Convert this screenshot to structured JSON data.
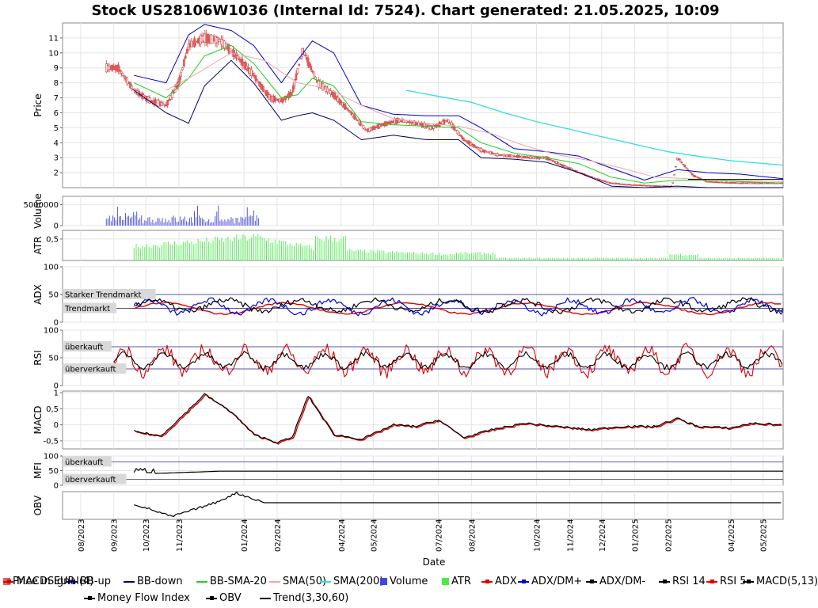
{
  "title": "Stock US28106W1036 (Internal Id: 7524). Chart generated: 21.05.2025, 10:09",
  "x_axis_label": "Date",
  "date_ticks": [
    "08/2023",
    "09/2023",
    "10/2023",
    "11/2023",
    "01/2024",
    "02/2024",
    "04/2024",
    "05/2024",
    "07/2024",
    "08/2024",
    "10/2024",
    "11/2024",
    "12/2024",
    "01/2025",
    "02/2025",
    "04/2025",
    "05/2025"
  ],
  "panels": [
    {
      "id": "price",
      "ylabel": "Price",
      "ticks": [
        "2",
        "3",
        "4",
        "5",
        "6",
        "7",
        "8",
        "9",
        "10",
        "11"
      ]
    },
    {
      "id": "volume",
      "ylabel": "Volume",
      "ticks": [
        "0",
        "5000000"
      ]
    },
    {
      "id": "atr",
      "ylabel": "ATR",
      "ticks": [
        "0,5"
      ]
    },
    {
      "id": "adx",
      "ylabel": "ADX",
      "ticks": [
        "0",
        "50",
        "100"
      ],
      "ref_labels": [
        "Starker Trendmarkt",
        "Trendmarkt"
      ]
    },
    {
      "id": "rsi",
      "ylabel": "RSI",
      "ticks": [
        "0",
        "50",
        "100"
      ],
      "ref_labels": [
        "überkauft",
        "überverkauft"
      ]
    },
    {
      "id": "macd",
      "ylabel": "MACD",
      "ticks": [
        "1",
        "0,5",
        "0",
        "-0,5"
      ]
    },
    {
      "id": "mfi",
      "ylabel": "MFI",
      "ticks": [
        "0",
        "50",
        "100"
      ],
      "ref_labels": [
        "überkauft",
        "überverkauft"
      ]
    },
    {
      "id": "obv",
      "ylabel": "OBV",
      "ticks": []
    }
  ],
  "legend": [
    {
      "label": "Price in EUR",
      "color": "#e86060",
      "kind": "box"
    },
    {
      "label": "BB-up",
      "color": "#0000cc",
      "kind": "line"
    },
    {
      "label": "BB-down",
      "color": "#000066",
      "kind": "line"
    },
    {
      "label": "BB-SMA-20",
      "color": "#22cc22",
      "kind": "line"
    },
    {
      "label": "SMA(50)",
      "color": "#f0a8a8",
      "kind": "line"
    },
    {
      "label": "SMA(200)",
      "color": "#33dddd",
      "kind": "line"
    },
    {
      "label": "Volume",
      "color": "#4444ee",
      "kind": "box"
    },
    {
      "label": "ATR",
      "color": "#44ee44",
      "kind": "box"
    },
    {
      "label": "ADX",
      "color": "#dd0000",
      "kind": "marker"
    },
    {
      "label": "ADX/DM+",
      "color": "#0000dd",
      "kind": "marker"
    },
    {
      "label": "ADX/DM-",
      "color": "#000000",
      "kind": "marker"
    },
    {
      "label": "RSI 14",
      "color": "#000000",
      "kind": "marker"
    },
    {
      "label": "RSI 5",
      "color": "#dd0000",
      "kind": "marker"
    },
    {
      "label": "MACD(5,13)",
      "color": "#000000",
      "kind": "marker"
    },
    {
      "label": "MACDSignal(4)",
      "color": "#dd0000",
      "kind": "marker"
    },
    {
      "label": "Money Flow Index",
      "color": "#000000",
      "kind": "marker"
    },
    {
      "label": "OBV",
      "color": "#000000",
      "kind": "marker"
    },
    {
      "label": "Trend(3,30,60)",
      "color": "#000000",
      "kind": "line"
    }
  ],
  "chart_data": {
    "type": "line",
    "title": "Stock US28106W1036 (Internal Id: 7524). Chart generated: 21.05.2025, 10:09",
    "xlabel": "Date",
    "x_range": [
      "2023-07-15",
      "2025-05-20"
    ],
    "price_ylim": [
      1,
      12
    ],
    "series": [
      {
        "name": "Price in EUR",
        "x": [
          "2023-08-25",
          "2023-09-05",
          "2023-09-20",
          "2023-10-05",
          "2023-10-20",
          "2023-11-01",
          "2023-11-10",
          "2023-11-25",
          "2023-12-10",
          "2023-12-25",
          "2024-01-10",
          "2024-01-25",
          "2024-02-05",
          "2024-02-15",
          "2024-02-25",
          "2024-03-10",
          "2024-03-25",
          "2024-04-10",
          "2024-04-25",
          "2024-05-10",
          "2024-05-25",
          "2024-06-10",
          "2024-06-25",
          "2024-07-10",
          "2024-07-25",
          "2024-08-10",
          "2024-08-25",
          "2024-09-10",
          "2024-09-25",
          "2024-10-10",
          "2024-10-25",
          "2024-11-10",
          "2024-11-25",
          "2024-12-10",
          "2024-12-25",
          "2025-01-10",
          "2025-01-25",
          "2025-02-05",
          "2025-02-10",
          "2025-02-25",
          "2025-03-10",
          "2025-03-25",
          "2025-04-10",
          "2025-04-25",
          "2025-05-10",
          "2025-05-20"
        ],
        "values": [
          9.0,
          9.0,
          7.5,
          6.8,
          6.5,
          8.0,
          10.5,
          11.0,
          10.8,
          9.8,
          8.5,
          7.0,
          6.8,
          7.3,
          10.2,
          8.0,
          7.2,
          6.0,
          4.8,
          5.2,
          5.5,
          5.3,
          5.0,
          5.5,
          4.2,
          3.5,
          3.2,
          3.1,
          3.0,
          3.0,
          2.5,
          2.0,
          1.6,
          1.3,
          1.2,
          1.15,
          1.1,
          1.1,
          3.0,
          1.8,
          1.4,
          1.35,
          1.3,
          1.3,
          1.3,
          1.3
        ]
      },
      {
        "name": "BB-up",
        "x": [
          "2023-09-20",
          "2023-10-20",
          "2023-11-10",
          "2023-11-25",
          "2023-12-20",
          "2024-01-10",
          "2024-02-05",
          "2024-02-20",
          "2024-03-05",
          "2024-03-25",
          "2024-04-20",
          "2024-05-20",
          "2024-06-20",
          "2024-07-20",
          "2024-08-10",
          "2024-09-10",
          "2024-10-10",
          "2024-11-10",
          "2024-12-10",
          "2025-01-10",
          "2025-02-10",
          "2025-03-10",
          "2025-04-10",
          "2025-05-20"
        ],
        "values": [
          8.5,
          8.0,
          11.2,
          11.9,
          11.5,
          10.5,
          8.0,
          9.5,
          10.8,
          10.0,
          6.5,
          5.9,
          5.8,
          5.8,
          5.0,
          3.6,
          3.4,
          3.1,
          2.3,
          1.5,
          2.2,
          2.0,
          1.9,
          1.6
        ]
      },
      {
        "name": "BB-down",
        "x": [
          "2023-09-20",
          "2023-10-20",
          "2023-11-10",
          "2023-11-25",
          "2023-12-20",
          "2024-01-10",
          "2024-02-05",
          "2024-02-20",
          "2024-03-05",
          "2024-03-25",
          "2024-04-20",
          "2024-05-20",
          "2024-06-20",
          "2024-07-20",
          "2024-08-10",
          "2024-09-10",
          "2024-10-10",
          "2024-11-10",
          "2024-12-10",
          "2025-01-10",
          "2025-02-10",
          "2025-03-10",
          "2025-04-10",
          "2025-05-20"
        ],
        "values": [
          7.5,
          6.0,
          5.3,
          7.8,
          9.5,
          8.0,
          5.5,
          5.8,
          6.0,
          5.5,
          4.2,
          4.5,
          4.2,
          4.2,
          3.0,
          2.9,
          2.7,
          2.0,
          1.1,
          1.0,
          1.1,
          1.0,
          1.0,
          1.0
        ]
      },
      {
        "name": "BB-SMA-20",
        "x": [
          "2023-09-20",
          "2023-10-20",
          "2023-11-10",
          "2023-11-25",
          "2023-12-20",
          "2024-01-10",
          "2024-02-05",
          "2024-02-20",
          "2024-03-05",
          "2024-03-25",
          "2024-04-20",
          "2024-05-20",
          "2024-06-20",
          "2024-07-20",
          "2024-08-10",
          "2024-09-10",
          "2024-10-10",
          "2024-11-10",
          "2024-12-10",
          "2025-01-10",
          "2025-02-10",
          "2025-03-10",
          "2025-04-10",
          "2025-05-20"
        ],
        "values": [
          8.0,
          7.0,
          8.3,
          9.8,
          10.5,
          9.3,
          7.0,
          7.2,
          8.3,
          7.8,
          5.4,
          5.2,
          5.1,
          5.0,
          4.0,
          3.3,
          3.0,
          2.6,
          1.7,
          1.3,
          1.5,
          1.5,
          1.4,
          1.3
        ]
      },
      {
        "name": "SMA(50)",
        "x": [
          "2023-10-20",
          "2023-11-15",
          "2023-12-20",
          "2024-01-20",
          "2024-02-20",
          "2024-03-20",
          "2024-04-20",
          "2024-05-20",
          "2024-06-20",
          "2024-07-20",
          "2024-08-20",
          "2024-09-20",
          "2024-10-20",
          "2024-11-20",
          "2024-12-20",
          "2025-01-20",
          "2025-02-20",
          "2025-03-20",
          "2025-04-20",
          "2025-05-20"
        ],
        "values": [
          7.5,
          8.5,
          10.0,
          9.5,
          8.0,
          7.6,
          6.5,
          5.6,
          5.3,
          5.1,
          4.6,
          3.8,
          3.2,
          2.8,
          2.3,
          1.7,
          1.6,
          1.5,
          1.45,
          1.4
        ]
      },
      {
        "name": "SMA(200)",
        "x": [
          "2024-06-01",
          "2024-07-01",
          "2024-08-01",
          "2024-09-01",
          "2024-10-01",
          "2024-11-01",
          "2024-12-01",
          "2025-01-01",
          "2025-02-01",
          "2025-03-01",
          "2025-04-01",
          "2025-05-20"
        ],
        "values": [
          7.5,
          7.1,
          6.7,
          6.0,
          5.4,
          4.9,
          4.4,
          3.9,
          3.4,
          3.1,
          2.8,
          2.5
        ]
      }
    ],
    "ylabel": "Price"
  }
}
